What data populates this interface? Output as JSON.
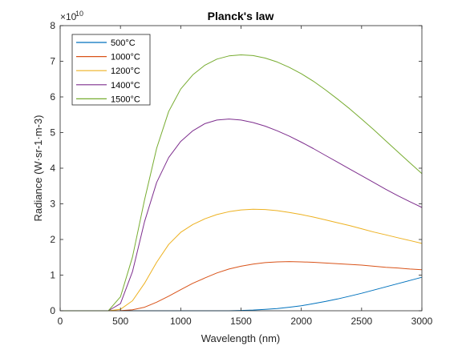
{
  "chart_data": {
    "type": "line",
    "title": "Planck's law",
    "xlabel": "Wavelength (nm)",
    "ylabel": "Radiance (W·sr-1·m-3)",
    "y_exponent_label": "×10",
    "y_exponent_power": "10",
    "xlim": [
      0,
      3000
    ],
    "ylim": [
      0,
      8
    ],
    "x_ticks": [
      "0",
      "500",
      "1000",
      "1500",
      "2000",
      "2500",
      "3000"
    ],
    "y_ticks": [
      "0",
      "1",
      "2",
      "3",
      "4",
      "5",
      "6",
      "7",
      "8"
    ],
    "grid": false,
    "legend_position": "top-left",
    "x": [
      0,
      100,
      200,
      300,
      400,
      500,
      600,
      700,
      800,
      900,
      1000,
      1100,
      1200,
      1300,
      1400,
      1500,
      1600,
      1700,
      1800,
      1900,
      2000,
      2100,
      2200,
      2300,
      2400,
      2500,
      2600,
      2700,
      2800,
      2900,
      3000
    ],
    "series": [
      {
        "name": "500°C",
        "color": "#0072BD",
        "values": [
          0,
          0,
          0,
          0,
          0,
          0,
          0,
          0,
          0,
          0,
          0,
          0,
          0,
          0,
          0,
          0.01,
          0.02,
          0.04,
          0.06,
          0.1,
          0.14,
          0.2,
          0.26,
          0.33,
          0.41,
          0.49,
          0.58,
          0.67,
          0.76,
          0.85,
          0.94
        ]
      },
      {
        "name": "1000°C",
        "color": "#D95319",
        "values": [
          0,
          0,
          0,
          0,
          0,
          0.002,
          0.03,
          0.1,
          0.24,
          0.41,
          0.59,
          0.77,
          0.92,
          1.06,
          1.17,
          1.25,
          1.31,
          1.35,
          1.37,
          1.38,
          1.37,
          1.36,
          1.34,
          1.32,
          1.3,
          1.28,
          1.25,
          1.22,
          1.2,
          1.17,
          1.15
        ]
      },
      {
        "name": "1200°C",
        "color": "#EDB120",
        "values": [
          0,
          0,
          0,
          0,
          0,
          0.04,
          0.28,
          0.77,
          1.36,
          1.86,
          2.2,
          2.42,
          2.58,
          2.7,
          2.78,
          2.83,
          2.85,
          2.84,
          2.81,
          2.76,
          2.7,
          2.63,
          2.55,
          2.47,
          2.39,
          2.3,
          2.21,
          2.13,
          2.05,
          1.97,
          1.89
        ]
      },
      {
        "name": "1400°C",
        "color": "#7E2F8E",
        "values": [
          0,
          0,
          0,
          0,
          0,
          0.2,
          1.1,
          2.5,
          3.6,
          4.3,
          4.75,
          5.05,
          5.25,
          5.35,
          5.38,
          5.35,
          5.28,
          5.18,
          5.05,
          4.9,
          4.73,
          4.55,
          4.36,
          4.17,
          3.98,
          3.79,
          3.6,
          3.41,
          3.23,
          3.06,
          2.9
        ]
      },
      {
        "name": "1500°C",
        "color": "#77AC30",
        "values": [
          0,
          0,
          0,
          0,
          0,
          0.39,
          1.51,
          3.11,
          4.56,
          5.59,
          6.22,
          6.62,
          6.89,
          7.06,
          7.15,
          7.18,
          7.16,
          7.09,
          6.98,
          6.83,
          6.65,
          6.44,
          6.2,
          5.94,
          5.67,
          5.38,
          5.08,
          4.77,
          4.46,
          4.15,
          3.85
        ]
      }
    ]
  }
}
